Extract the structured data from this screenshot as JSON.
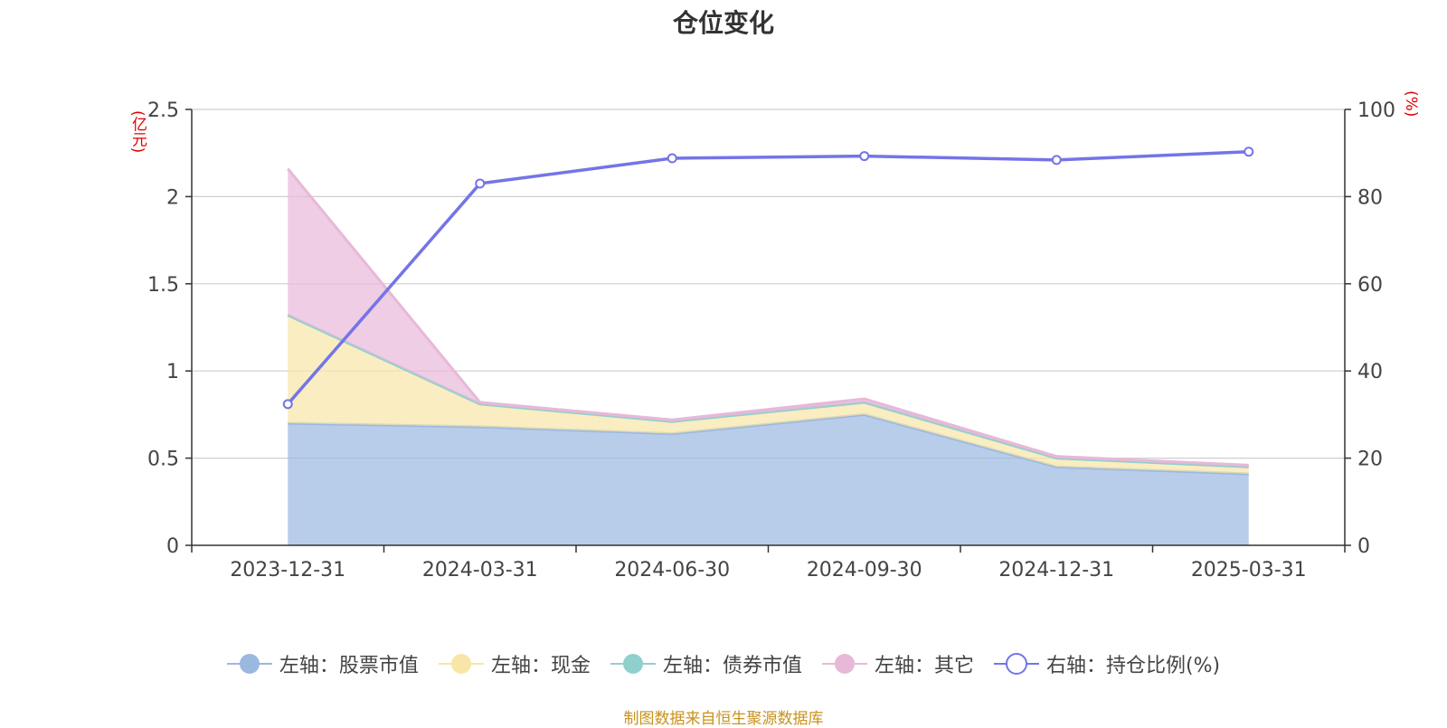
{
  "chart_data": {
    "type": "area",
    "title": "仓位变化",
    "categories": [
      "2023-12-31",
      "2024-03-31",
      "2024-06-30",
      "2024-09-30",
      "2024-12-31",
      "2025-03-31"
    ],
    "left_axis": {
      "unit_label": "(亿元)",
      "ticks": [
        "0",
        "0.5",
        "1",
        "1.5",
        "2",
        "2.5"
      ],
      "ylim": [
        0,
        2.5
      ]
    },
    "right_axis": {
      "unit_label": "(%)",
      "ticks": [
        "0",
        "20",
        "40",
        "60",
        "80",
        "100"
      ],
      "ylim": [
        0,
        100
      ]
    },
    "series": [
      {
        "name": "左轴：股票市值",
        "axis": "left",
        "kind": "stacked-area",
        "color": "#9ab8e0",
        "values": [
          0.7,
          0.68,
          0.64,
          0.75,
          0.45,
          0.41
        ]
      },
      {
        "name": "左轴：现金",
        "axis": "left",
        "kind": "stacked-area",
        "color": "#f7e6a6",
        "values": [
          0.62,
          0.13,
          0.07,
          0.07,
          0.05,
          0.04
        ]
      },
      {
        "name": "左轴：债券市值",
        "axis": "left",
        "kind": "stacked-area",
        "color": "#8fd0cf",
        "values": [
          0,
          0,
          0,
          0,
          0,
          0
        ]
      },
      {
        "name": "左轴：其它",
        "axis": "left",
        "kind": "stacked-area",
        "color": "#e8b8d8",
        "values": [
          0.84,
          0.01,
          0.01,
          0.02,
          0.01,
          0.01
        ]
      },
      {
        "name": "右轴：持仓比例(%)",
        "axis": "right",
        "kind": "line",
        "color": "#7474e8",
        "values": [
          32.4,
          83.0,
          88.8,
          89.3,
          88.4,
          90.3
        ]
      }
    ],
    "grid": true,
    "legend_position": "bottom"
  },
  "source_note": "制图数据来自恒生聚源数据库"
}
